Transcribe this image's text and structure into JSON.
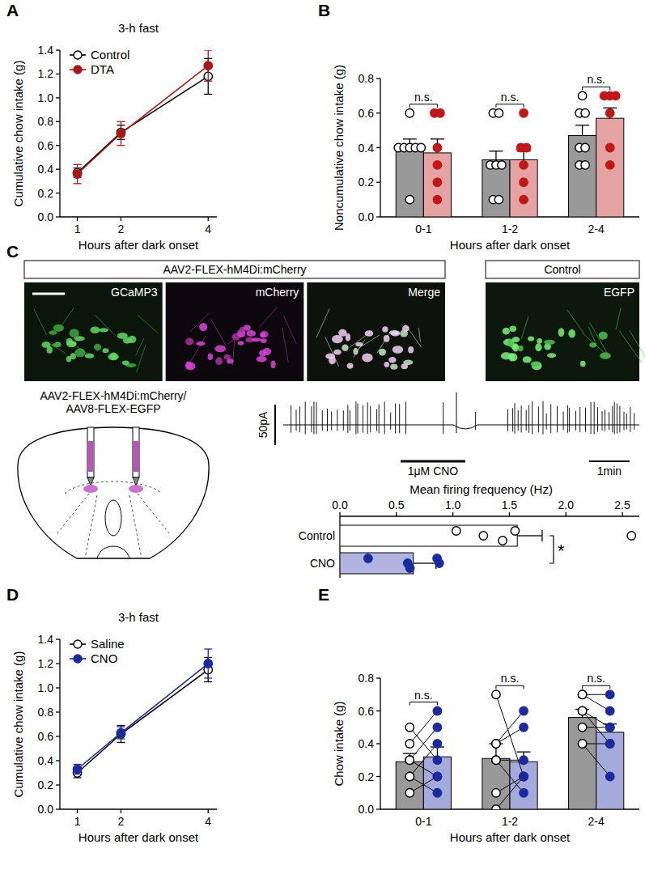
{
  "chart_data": [
    {
      "panel": "A",
      "type": "line",
      "title": "3-h fast",
      "x_label": "Hours after dark onset",
      "y_label": "Cumulative chow intake (g)",
      "x": [
        1,
        2,
        4
      ],
      "xlim": [
        0.6,
        4.2
      ],
      "xticks": [
        1,
        2,
        4
      ],
      "ylim": [
        0,
        1.4
      ],
      "yticks": [
        {
          "value": 0,
          "label": "0.0"
        },
        0.2,
        0.4,
        0.6,
        0.8,
        {
          "value": 1,
          "label": "1.0"
        },
        1.2,
        1.4
      ],
      "legend": "upper-left",
      "series": [
        {
          "name": "Control",
          "color": "#000000",
          "marker": "open-circle",
          "values": [
            0.37,
            0.71,
            1.18
          ],
          "errors": [
            0.04,
            0.06,
            0.15
          ]
        },
        {
          "name": "DTA",
          "color": "#a81818",
          "marker": "circle",
          "values": [
            0.36,
            0.7,
            1.27
          ],
          "errors": [
            0.08,
            0.1,
            0.13
          ]
        }
      ]
    },
    {
      "panel": "B",
      "type": "bar",
      "x_label": "Hours after dark onset",
      "y_label": "Noncumulative chow intake (g)",
      "categories": [
        "0-1",
        "1-2",
        "2-4"
      ],
      "ylim": [
        0,
        0.8
      ],
      "yticks": [
        {
          "value": 0,
          "label": "0.0"
        },
        0.2,
        0.4,
        0.6,
        0.8
      ],
      "annotations": [
        "n.s.",
        "n.s.",
        "n.s."
      ],
      "series": [
        {
          "name": "Control",
          "color": "#000000",
          "marker": "open-circle",
          "values": [
            0.39,
            0.33,
            0.47
          ],
          "errors": [
            0.06,
            0.05,
            0.06
          ],
          "points": [
            [
              0.6,
              0.4,
              0.4,
              0.4,
              0.4,
              0.4,
              0.1
            ],
            [
              0.6,
              0.6,
              0.3,
              0.3,
              0.3,
              0.1,
              0.1
            ],
            [
              0.7,
              0.6,
              0.6,
              0.4,
              0.3,
              0.3,
              0.4
            ]
          ]
        },
        {
          "name": "DTA",
          "color": "#c01818",
          "marker": "circle",
          "values": [
            0.37,
            0.33,
            0.57
          ],
          "errors": [
            0.08,
            0.05,
            0.06
          ],
          "points": [
            [
              0.6,
              0.6,
              0.4,
              0.3,
              0.2,
              0.1
            ],
            [
              0.6,
              0.4,
              0.4,
              0.3,
              0.2,
              0.1
            ],
            [
              0.7,
              0.7,
              0.7,
              0.6,
              0.4,
              0.3
            ]
          ]
        }
      ]
    },
    {
      "type": "bar",
      "orientation": "horizontal",
      "x_label": "Mean firing frequency (Hz)",
      "categories": [
        "Control",
        "CNO"
      ],
      "values": [
        1.57,
        0.65
      ],
      "errors": [
        0.22,
        0.2
      ],
      "colors": [
        "#ffffff",
        "#1c2aa0"
      ],
      "points": [
        [
          1.03,
          1.27,
          1.44,
          1.55,
          2.58
        ],
        [
          0.25,
          0.6,
          0.62,
          0.86,
          0.88
        ]
      ],
      "xlim": [
        0,
        2.65
      ],
      "xticks": [
        {
          "value": 0,
          "label": "0.0"
        },
        0.5,
        {
          "value": 1,
          "label": "1.0"
        },
        1.5,
        {
          "value": 2,
          "label": "2.0"
        },
        2.5
      ],
      "annotations": [
        "*"
      ]
    },
    {
      "panel": "D",
      "type": "line",
      "title": "3-h fast",
      "x_label": "Hours after dark onset",
      "y_label": "Cumulative chow intake (g)",
      "x": [
        1,
        2,
        4
      ],
      "xlim": [
        0.6,
        4.2
      ],
      "xticks": [
        1,
        2,
        4
      ],
      "ylim": [
        0,
        1.4
      ],
      "yticks": [
        {
          "value": 0,
          "label": "0.0"
        },
        0.2,
        0.4,
        0.6,
        0.8,
        {
          "value": 1,
          "label": "1.0"
        },
        1.2,
        1.4
      ],
      "legend": "upper-left",
      "series": [
        {
          "name": "Saline",
          "color": "#000000",
          "marker": "open-circle",
          "values": [
            0.3,
            0.62,
            1.15
          ],
          "errors": [
            0.04,
            0.07,
            0.1
          ]
        },
        {
          "name": "CNO",
          "color": "#1c2aa0",
          "marker": "circle",
          "values": [
            0.33,
            0.63,
            1.2
          ],
          "errors": [
            0.04,
            0.05,
            0.12
          ]
        }
      ]
    },
    {
      "panel": "E",
      "type": "paired_bar",
      "x_label": "Hours after dark onset",
      "y_label": "Chow intake (g)",
      "categories": [
        "0-1",
        "1-2",
        "2-4"
      ],
      "ylim": [
        0,
        0.8
      ],
      "yticks": [
        {
          "value": 0,
          "label": "0.0"
        },
        0.2,
        0.4,
        0.6,
        0.8
      ],
      "annotations": [
        "n.s.",
        "n.s.",
        "n.s."
      ],
      "series": [
        {
          "name": "Saline",
          "color": "#000000",
          "marker": "open-circle",
          "values": [
            0.29,
            0.31,
            0.56
          ],
          "errors": [
            0.05,
            0.09,
            0.05
          ],
          "points": [
            [
              0.5,
              0.4,
              0.3,
              0.3,
              0.2,
              0.2,
              0.1
            ],
            [
              0.7,
              0.4,
              0.4,
              0.3,
              0.3,
              0.1,
              0.0
            ],
            [
              0.7,
              0.7,
              0.6,
              0.6,
              0.5,
              0.4,
              0.4
            ]
          ]
        },
        {
          "name": "CNO",
          "color": "#1c2aa0",
          "marker": "circle",
          "values": [
            0.32,
            0.29,
            0.47
          ],
          "errors": [
            0.06,
            0.06,
            0.05
          ],
          "points": [
            [
              0.3,
              0.6,
              0.5,
              0.2,
              0.4,
              0.1,
              0.2
            ],
            [
              0.2,
              0.5,
              0.6,
              0.3,
              0.1,
              0.2,
              0.2
            ],
            [
              0.7,
              0.6,
              0.5,
              0.4,
              0.5,
              0.2,
              0.4
            ]
          ]
        }
      ]
    }
  ],
  "figure": {
    "panel_c": {
      "panel": "C",
      "header": "AAV2-FLEX-hM4Di:mCherry",
      "images": [
        "GCaMP3",
        "mCherry",
        "Merge"
      ],
      "control_header": "Control",
      "control_image": "EGFP",
      "injection_label": [
        "AAV2-FLEX-hM4Di:mCherry/",
        "AAV8-FLEX-EGFP"
      ],
      "scale_current": "50pA",
      "drug_label": "1μM CNO",
      "scale_time": "1min"
    }
  }
}
